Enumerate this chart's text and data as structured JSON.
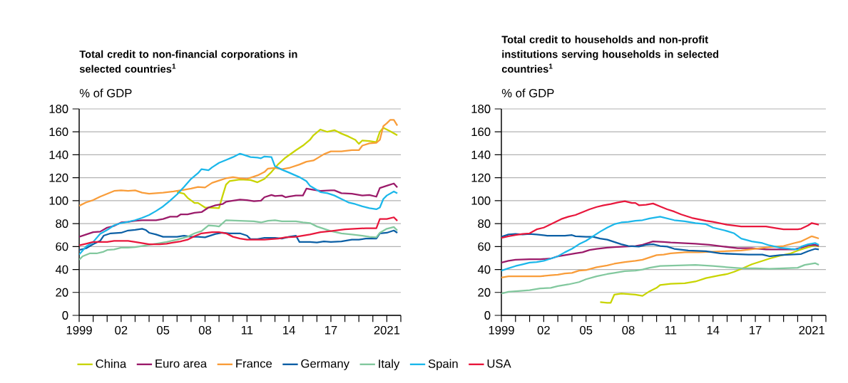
{
  "chart_data": [
    {
      "type": "line",
      "title": "Total credit to non-financial corporations in selected countries$^{1}$",
      "ylabel": "% of GDP",
      "xlim": [
        1999,
        2022
      ],
      "ylim": [
        0,
        180
      ],
      "yticks": [
        0,
        20,
        40,
        60,
        80,
        100,
        120,
        140,
        160,
        180
      ],
      "xticks": [
        1999,
        {
          "value": 2000,
          "label": null
        },
        {
          "value": 2001,
          "label": null
        },
        {
          "value": 2002,
          "label": "02"
        },
        {
          "value": 2003,
          "label": null
        },
        {
          "value": 2004,
          "label": null
        },
        {
          "value": 2005,
          "label": "05"
        },
        {
          "value": 2006,
          "label": null
        },
        {
          "value": 2007,
          "label": null
        },
        {
          "value": 2008,
          "label": "08"
        },
        {
          "value": 2009,
          "label": null
        },
        {
          "value": 2010,
          "label": null
        },
        {
          "value": 2011,
          "label": "11"
        },
        {
          "value": 2012,
          "label": null
        },
        {
          "value": 2013,
          "label": null
        },
        {
          "value": 2014,
          "label": "14"
        },
        {
          "value": 2015,
          "label": null
        },
        {
          "value": 2016,
          "label": null
        },
        {
          "value": 2017,
          "label": "17"
        },
        {
          "value": 2018,
          "label": null
        },
        {
          "value": 2019,
          "label": null
        },
        {
          "value": 2020,
          "label": null
        },
        2021,
        {
          "value": 2022,
          "label": null
        }
      ],
      "grid": "y",
      "legend": "bottom",
      "series": [
        {
          "name": "China",
          "color": "#c8d400",
          "x": [
            2006,
            2006.5,
            2006.75,
            2007.25,
            2007.5,
            2007.75,
            2008,
            2008.25,
            2009,
            2009.25,
            2009.5,
            2009.75,
            2010.5,
            2011.25,
            2011.75,
            2012.25,
            2012.75,
            2013.25,
            2013.75,
            2014.5,
            2015,
            2015.5,
            2015.75,
            2016.25,
            2016.75,
            2017.25,
            2017.75,
            2018.25,
            2018.75,
            2019,
            2019.25,
            2019.75,
            2020.25,
            2020.5,
            2020.75,
            2021.25,
            2021.75
          ],
          "values": [
            107.5,
            106,
            102.5,
            98,
            98,
            96,
            94,
            94,
            93.5,
            104,
            114,
            117,
            118.5,
            118,
            116,
            119,
            125,
            132,
            137.5,
            144,
            148,
            153,
            157,
            162,
            160,
            161.5,
            158.5,
            156,
            153,
            149.5,
            152.5,
            152,
            151,
            160,
            163.5,
            160.5,
            157
          ]
        },
        {
          "name": "Euro area",
          "color": "#9b1b6a",
          "x": [
            1999,
            1999.5,
            2000,
            2000.5,
            2001,
            2001.5,
            2002,
            2002.5,
            2003,
            2003.5,
            2004,
            2004.5,
            2005,
            2005.5,
            2006,
            2006.25,
            2006.75,
            2007.25,
            2007.75,
            2008.25,
            2008.75,
            2009.25,
            2009.5,
            2010,
            2010.5,
            2011,
            2011.5,
            2012,
            2012.25,
            2012.75,
            2013,
            2013.5,
            2013.75,
            2014,
            2014.5,
            2015,
            2015.25,
            2015.75,
            2016.25,
            2017,
            2017.25,
            2017.75,
            2018.5,
            2019.25,
            2019.75,
            2020.25,
            2020.5,
            2021,
            2021.5,
            2021.75
          ],
          "values": [
            68.5,
            70.5,
            72.5,
            73,
            76.5,
            78,
            81,
            81.5,
            82.5,
            83,
            83,
            83,
            84,
            86,
            86,
            88,
            88,
            89.5,
            90,
            94,
            96,
            97,
            99,
            100,
            101,
            100.5,
            99.5,
            100,
            103,
            105,
            104,
            104.5,
            103,
            103.5,
            104.5,
            104.5,
            110.5,
            109.5,
            108.5,
            109,
            109,
            106.5,
            106,
            104.5,
            105,
            103.5,
            111,
            113,
            115,
            111.5
          ]
        },
        {
          "name": "France",
          "color": "#f99d3a",
          "x": [
            1999,
            1999.5,
            2000,
            2000.5,
            2001,
            2001.5,
            2002,
            2002.5,
            2003,
            2003.5,
            2004,
            2004.5,
            2005,
            2005.75,
            2006,
            2006.5,
            2007,
            2007.5,
            2008,
            2008.5,
            2009,
            2009.5,
            2010,
            2010.5,
            2011,
            2011.75,
            2012.25,
            2012.5,
            2013,
            2013.5,
            2014,
            2014.75,
            2015.25,
            2015.75,
            2016.5,
            2017,
            2017.75,
            2018.5,
            2019,
            2019.25,
            2019.75,
            2020.25,
            2020.5,
            2020.75,
            2021,
            2021.25,
            2021.5,
            2021.75
          ],
          "values": [
            95.5,
            98.5,
            100.5,
            103.5,
            106,
            108.5,
            109,
            108.5,
            109,
            107,
            106,
            106.5,
            107,
            108,
            108.5,
            109.5,
            110.5,
            112,
            111.5,
            115.5,
            117.5,
            119.5,
            120.5,
            119.5,
            119,
            122,
            125,
            128,
            128.5,
            127.5,
            128.5,
            131.5,
            134,
            135,
            140.5,
            143,
            143,
            144,
            144,
            148,
            150,
            150.5,
            153,
            165,
            167.5,
            170.5,
            170.5,
            165.5
          ]
        },
        {
          "name": "Germany",
          "color": "#0b5fa5",
          "x": [
            1999,
            1999.5,
            2000,
            2000.5,
            2000.75,
            2001.25,
            2002,
            2002.5,
            2003,
            2003.5,
            2003.75,
            2004,
            2004.5,
            2005,
            2005.75,
            2006,
            2006.5,
            2007,
            2007.5,
            2008,
            2008.75,
            2009.25,
            2009.75,
            2010.5,
            2011,
            2011.25,
            2011.75,
            2012.25,
            2013,
            2013.5,
            2014,
            2014.5,
            2014.75,
            2015.5,
            2016,
            2016.5,
            2017,
            2017.75,
            2018.5,
            2019,
            2019.5,
            2020.25,
            2020.5,
            2021,
            2021.5,
            2021.75
          ],
          "values": [
            57,
            58.5,
            62,
            65,
            69.5,
            71.5,
            72,
            74,
            74.5,
            75.5,
            74.5,
            72,
            70.5,
            68.5,
            68.5,
            68.5,
            69.5,
            68.5,
            68.5,
            68,
            71,
            72,
            71.5,
            71.5,
            69.5,
            66.5,
            66.5,
            67.5,
            67.5,
            67,
            68.5,
            69.5,
            64,
            64,
            63.5,
            64.5,
            64,
            64.5,
            66,
            66,
            67,
            67,
            71.5,
            72,
            74,
            72
          ]
        },
        {
          "name": "Italy",
          "color": "#82c89e",
          "x": [
            1999,
            1999.25,
            1999.75,
            2000.25,
            2000.75,
            2001,
            2001.5,
            2002,
            2002.5,
            2003,
            2003.5,
            2004,
            2004.5,
            2005.25,
            2006,
            2006.75,
            2007.25,
            2007.75,
            2008.25,
            2008.75,
            2009,
            2009.5,
            2010.5,
            2011.5,
            2012,
            2012.5,
            2013,
            2013.5,
            2014.5,
            2015,
            2015.5,
            2016,
            2016.5,
            2017,
            2017.75,
            2018.5,
            2019.25,
            2019.75,
            2020.25,
            2020.5,
            2021,
            2021.5,
            2021.75
          ],
          "values": [
            48.5,
            51.5,
            54,
            54,
            55.5,
            57,
            57.5,
            59,
            59,
            59.5,
            60.5,
            61.5,
            62.5,
            64,
            66,
            68.5,
            71.5,
            73.5,
            78.5,
            78,
            77.5,
            83,
            82.5,
            82,
            81,
            82.5,
            83,
            82,
            82,
            81,
            80.5,
            77.5,
            75.5,
            73.5,
            71.5,
            70.5,
            69.5,
            68.5,
            68,
            72,
            75.5,
            77,
            74
          ]
        },
        {
          "name": "Spain",
          "color": "#1bb7ea",
          "x": [
            1999,
            1999.5,
            2000,
            2000.5,
            2001,
            2001.5,
            2002,
            2002.5,
            2003,
            2003.5,
            2004,
            2004.5,
            2005,
            2005.5,
            2006,
            2006.5,
            2007,
            2007.5,
            2007.75,
            2008.25,
            2008.5,
            2009,
            2009.5,
            2010,
            2010.5,
            2010.75,
            2011.25,
            2011.75,
            2012,
            2012.25,
            2012.75,
            2013,
            2013.5,
            2014,
            2014.75,
            2015.25,
            2015.5,
            2016.25,
            2016.75,
            2017.25,
            2017.75,
            2018.25,
            2018.75,
            2019.25,
            2019.75,
            2020.25,
            2020.5,
            2020.75,
            2021,
            2021.5,
            2021.75
          ],
          "values": [
            53,
            60,
            64,
            71,
            74.5,
            78.5,
            80.5,
            81.5,
            83,
            85,
            87.5,
            91,
            95,
            100,
            105.5,
            112,
            119,
            124,
            127.5,
            126.5,
            129,
            133,
            135.5,
            138,
            141,
            140,
            138,
            137.5,
            137,
            138.5,
            138,
            130,
            127,
            124.5,
            120.5,
            117,
            113,
            107.5,
            106.5,
            104.5,
            101.5,
            98.5,
            97,
            95,
            93.5,
            92.5,
            94,
            101.5,
            104.5,
            108,
            106.5
          ]
        },
        {
          "name": "USA",
          "color": "#e8173c",
          "x": [
            1999,
            1999.5,
            2000,
            2001,
            2001.5,
            2002,
            2002.5,
            2003,
            2003.5,
            2004,
            2004.75,
            2005.25,
            2005.75,
            2006.25,
            2006.75,
            2007.25,
            2007.75,
            2008.5,
            2009,
            2009.5,
            2010,
            2010.5,
            2011,
            2011.75,
            2012.25,
            2012.75,
            2013.25,
            2013.75,
            2014.5,
            2015.5,
            2016.25,
            2017,
            2018,
            2018.75,
            2019.5,
            2020.25,
            2020.5,
            2021,
            2021.5,
            2021.75
          ],
          "values": [
            61,
            62.5,
            64,
            64,
            65,
            65,
            65,
            64,
            63,
            62,
            62,
            62.5,
            63.5,
            64.5,
            66,
            69,
            71.5,
            72.5,
            72.5,
            71.5,
            68.5,
            67,
            66,
            66,
            66,
            66.5,
            67,
            68,
            68.5,
            70.5,
            72.5,
            73.5,
            75,
            75.5,
            76,
            76,
            84,
            84,
            85.5,
            82.5
          ]
        }
      ]
    },
    {
      "type": "line",
      "title": "Total credit to households and non-profit institutions serving households in selected countries$^{1}$",
      "ylabel": "% of GDP",
      "xlim": [
        1999,
        2022
      ],
      "ylim": [
        0,
        180
      ],
      "yticks": [
        0,
        20,
        40,
        60,
        80,
        100,
        120,
        140,
        160,
        180
      ],
      "xticks": [
        1999,
        {
          "value": 2000,
          "label": null
        },
        {
          "value": 2001,
          "label": null
        },
        {
          "value": 2002,
          "label": "02"
        },
        {
          "value": 2003,
          "label": null
        },
        {
          "value": 2004,
          "label": null
        },
        {
          "value": 2005,
          "label": "05"
        },
        {
          "value": 2006,
          "label": null
        },
        {
          "value": 2007,
          "label": null
        },
        {
          "value": 2008,
          "label": "08"
        },
        {
          "value": 2009,
          "label": null
        },
        {
          "value": 2010,
          "label": null
        },
        {
          "value": 2011,
          "label": "11"
        },
        {
          "value": 2012,
          "label": null
        },
        {
          "value": 2013,
          "label": null
        },
        {
          "value": 2014,
          "label": "14"
        },
        {
          "value": 2015,
          "label": null
        },
        {
          "value": 2016,
          "label": null
        },
        {
          "value": 2017,
          "label": "17"
        },
        {
          "value": 2018,
          "label": null
        },
        {
          "value": 2019,
          "label": null
        },
        {
          "value": 2020,
          "label": null
        },
        2021,
        {
          "value": 2022,
          "label": null
        }
      ],
      "grid": "y",
      "series": [
        {
          "color": "#c8d400",
          "x": [
            2006,
            2006.5,
            2006.75,
            2007,
            2007.5,
            2008,
            2008.5,
            2009,
            2009.5,
            2010,
            2010.25,
            2011,
            2012,
            2012.75,
            2013.5,
            2014.5,
            2015,
            2015.5,
            2016,
            2016.75,
            2017.5,
            2018,
            2018.75,
            2019.5,
            2020,
            2020.75,
            2021.25,
            2021.5
          ],
          "values": [
            11.5,
            11,
            11,
            18,
            19,
            18.5,
            18,
            17,
            21,
            24,
            26.5,
            27.5,
            28,
            29.5,
            32.5,
            35,
            36,
            38,
            40.5,
            44.5,
            47.5,
            49.5,
            52,
            54,
            56.5,
            59.5,
            61,
            60
          ]
        },
        {
          "color": "#9b1b6a",
          "x": [
            1999,
            1999.5,
            2000,
            2001,
            2001.75,
            2002.5,
            2003,
            2003.75,
            2004.25,
            2004.75,
            2005.25,
            2005.75,
            2006.5,
            2007,
            2007.75,
            2008.5,
            2009,
            2009.5,
            2009.75,
            2010.5,
            2011,
            2011.75,
            2012.75,
            2013.75,
            2014.75,
            2015.75,
            2016.75,
            2017.75,
            2018.5,
            2019.25,
            2019.75,
            2020.25,
            2020.75,
            2021.25,
            2021.5
          ],
          "values": [
            46,
            47.5,
            48.5,
            49,
            49,
            49.5,
            51.5,
            53,
            54,
            55,
            57,
            58,
            59,
            59.5,
            60,
            60.5,
            61.5,
            63.5,
            64.5,
            64,
            63.5,
            63,
            62.5,
            61.5,
            60,
            58.5,
            58.5,
            57.5,
            57.5,
            57.5,
            57.5,
            59,
            61,
            61.5,
            60.5
          ]
        },
        {
          "color": "#f99d3a",
          "x": [
            1999,
            1999.5,
            2000,
            2001,
            2001.75,
            2002.5,
            2003,
            2003.5,
            2004,
            2004.5,
            2005,
            2005.75,
            2006.5,
            2007,
            2007.75,
            2008.5,
            2009,
            2009.5,
            2010,
            2010.5,
            2011,
            2012,
            2013,
            2014,
            2015,
            2016,
            2017,
            2018,
            2019,
            2019.75,
            2020.25,
            2020.75,
            2021,
            2021.5
          ],
          "values": [
            33,
            34,
            34,
            34,
            34,
            35,
            35.5,
            36.5,
            37,
            39,
            39.5,
            42,
            43.5,
            45,
            46.5,
            47.5,
            48.5,
            50.5,
            52.5,
            53,
            54,
            55,
            55,
            55.5,
            56,
            56.5,
            58,
            59.5,
            60.5,
            63,
            64.5,
            67.5,
            69,
            67
          ]
        },
        {
          "color": "#0b5fa5",
          "x": [
            1999,
            1999.5,
            2000,
            2000.5,
            2001,
            2001.5,
            2002.25,
            2002.75,
            2003.5,
            2004,
            2004.25,
            2005,
            2005.5,
            2006,
            2006.5,
            2007,
            2007.5,
            2008,
            2008.75,
            2009.25,
            2009.75,
            2010.25,
            2010.75,
            2011.25,
            2012.25,
            2013.5,
            2014.5,
            2015.5,
            2016.5,
            2017.5,
            2018,
            2018.75,
            2019.5,
            2020.25,
            2020.75,
            2021.25,
            2021.5
          ],
          "values": [
            68.5,
            70.5,
            71,
            70.5,
            71,
            70.5,
            69.5,
            69.5,
            69.5,
            70,
            69,
            68.5,
            68.5,
            67,
            66,
            64,
            62,
            60.5,
            60,
            61.5,
            62,
            60.5,
            60,
            58,
            56.5,
            56,
            54,
            53.5,
            53,
            53,
            51.5,
            52.5,
            53,
            53.5,
            56,
            58,
            57.5
          ]
        },
        {
          "color": "#82c89e",
          "x": [
            1999,
            1999.5,
            2000,
            2000.5,
            2001,
            2001.75,
            2002.5,
            2003,
            2003.75,
            2004.5,
            2005,
            2005.75,
            2006.5,
            2007,
            2007.75,
            2008.5,
            2009,
            2009.5,
            2010.25,
            2011.5,
            2012.75,
            2014,
            2015,
            2016,
            2017,
            2018,
            2019,
            2020,
            2020.5,
            2021.25,
            2021.5
          ],
          "values": [
            19,
            20.5,
            21,
            21.5,
            22,
            23.5,
            24,
            25.5,
            27,
            29,
            31.5,
            34,
            36,
            37,
            38.5,
            39,
            40,
            41.5,
            43,
            43.5,
            44,
            43,
            42,
            41,
            41,
            40.5,
            41,
            41.5,
            44,
            45.5,
            44
          ]
        },
        {
          "color": "#1bb7ea",
          "x": [
            1999,
            1999.5,
            2000,
            2000.5,
            2001,
            2001.5,
            2002,
            2002.5,
            2003,
            2003.5,
            2004,
            2004.5,
            2005,
            2005.5,
            2006,
            2006.5,
            2007,
            2007.5,
            2008,
            2008.5,
            2009,
            2009.5,
            2010.25,
            2010.75,
            2011.25,
            2012,
            2012.75,
            2013.5,
            2014,
            2015,
            2015.5,
            2016,
            2016.75,
            2017.5,
            2018,
            2018.75,
            2019.5,
            2020,
            2020.25,
            2020.75,
            2021.25,
            2021.5
          ],
          "values": [
            39,
            41,
            43,
            44.5,
            46,
            46.5,
            47.5,
            49.5,
            51.5,
            55,
            58,
            62,
            65,
            69,
            73,
            76.5,
            79.5,
            81,
            81.5,
            82.5,
            83,
            84.5,
            86,
            84.5,
            83,
            82,
            80.5,
            79.5,
            76.5,
            73.5,
            71.5,
            67,
            64.5,
            63,
            61,
            59,
            58,
            57.5,
            60,
            62,
            63,
            61.5
          ]
        },
        {
          "color": "#e8173c",
          "x": [
            1999,
            1999.5,
            2000,
            2000.5,
            2001,
            2001.5,
            2002,
            2002.5,
            2003.25,
            2003.75,
            2004.25,
            2004.75,
            2005.25,
            2005.75,
            2006.25,
            2006.75,
            2007.25,
            2007.75,
            2008.25,
            2008.5,
            2008.75,
            2009.25,
            2009.75,
            2010.25,
            2010.75,
            2011.25,
            2011.75,
            2012.5,
            2013.5,
            2014,
            2015,
            2016,
            2017,
            2017.75,
            2018.5,
            2019,
            2020,
            2020.25,
            2020.75,
            2021,
            2021.5
          ],
          "values": [
            67.5,
            69,
            70,
            71,
            71.5,
            75,
            76.5,
            79.5,
            84,
            86,
            87.5,
            90,
            92.5,
            94.5,
            96,
            97,
            98.5,
            99.5,
            98,
            98,
            96,
            96.5,
            97.5,
            95,
            92.5,
            90.5,
            88,
            85,
            82.5,
            81.5,
            79,
            77.5,
            77.5,
            77.5,
            76,
            75,
            75,
            75.5,
            78.5,
            80.5,
            79
          ]
        }
      ]
    }
  ]
}
